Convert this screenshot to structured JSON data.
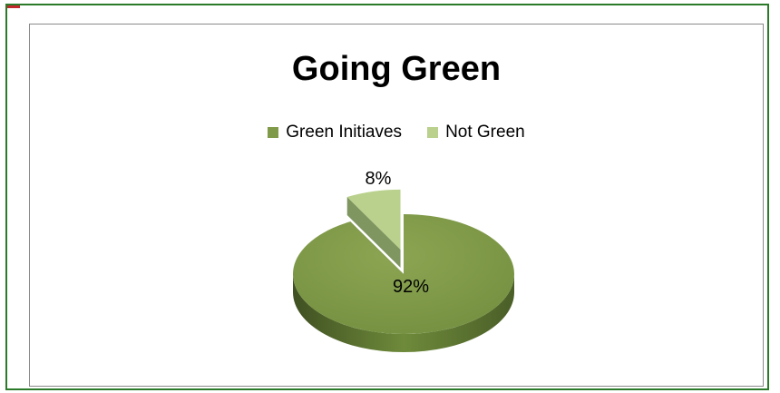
{
  "chart_data": {
    "type": "pie",
    "title": "Going Green",
    "legend_position": "top",
    "slices": [
      {
        "name": "Green Initiaves",
        "value": 92,
        "label": "92%",
        "color": "#7f9a48"
      },
      {
        "name": "Not Green",
        "value": 8,
        "label": "8%",
        "color": "#b9d18c"
      }
    ]
  }
}
